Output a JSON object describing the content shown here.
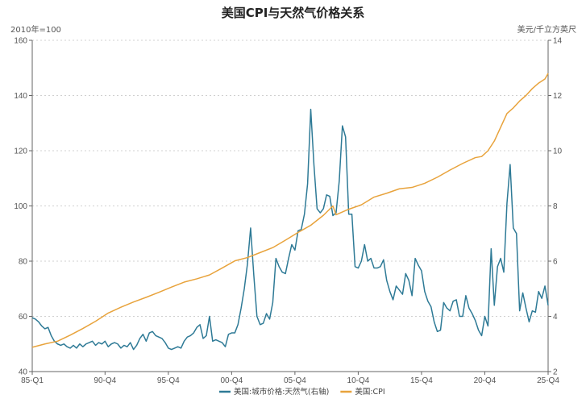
{
  "chart_data": {
    "type": "line",
    "title": "美国CPI与天然气价格关系",
    "left_axis_unit": "2010年=100",
    "right_axis_unit": "美元/千立方英尺",
    "left_axis": {
      "min": 40,
      "max": 160,
      "ticks": [
        40,
        60,
        80,
        100,
        120,
        140,
        160
      ]
    },
    "right_axis": {
      "min": 2,
      "max": 14,
      "ticks": [
        2,
        4,
        6,
        8,
        10,
        12,
        14
      ]
    },
    "x_axis": {
      "start_year": 1985,
      "end_year": 2025.75,
      "tick_labels": [
        "85-Q1",
        "90-Q4",
        "95-Q4",
        "00-Q4",
        "05-Q4",
        "10-Q4",
        "15-Q4",
        "20-Q4",
        "25-Q4"
      ],
      "tick_years": [
        1985,
        1990.75,
        1995.75,
        2000.75,
        2005.75,
        2010.75,
        2015.75,
        2020.75,
        2025.75
      ]
    },
    "grid": "horizontal-dashed",
    "legend_position": "bottom-center",
    "series": [
      {
        "name": "美国:城市价格:天然气(右轴)",
        "axis": "right",
        "color": "#2e7a96",
        "points": [
          [
            1985.0,
            3.95
          ],
          [
            1985.25,
            3.9
          ],
          [
            1985.5,
            3.8
          ],
          [
            1985.75,
            3.65
          ],
          [
            1986.0,
            3.55
          ],
          [
            1986.25,
            3.6
          ],
          [
            1986.5,
            3.3
          ],
          [
            1986.75,
            3.1
          ],
          [
            1987.0,
            3.0
          ],
          [
            1987.25,
            2.95
          ],
          [
            1987.5,
            3.0
          ],
          [
            1987.75,
            2.9
          ],
          [
            1988.0,
            2.85
          ],
          [
            1988.25,
            2.95
          ],
          [
            1988.5,
            2.85
          ],
          [
            1988.75,
            3.0
          ],
          [
            1989.0,
            2.9
          ],
          [
            1989.25,
            3.0
          ],
          [
            1989.5,
            3.05
          ],
          [
            1989.75,
            3.1
          ],
          [
            1990.0,
            2.95
          ],
          [
            1990.25,
            3.05
          ],
          [
            1990.5,
            3.0
          ],
          [
            1990.75,
            3.1
          ],
          [
            1991.0,
            2.9
          ],
          [
            1991.25,
            3.0
          ],
          [
            1991.5,
            3.05
          ],
          [
            1991.75,
            3.0
          ],
          [
            1992.0,
            2.85
          ],
          [
            1992.25,
            2.95
          ],
          [
            1992.5,
            2.9
          ],
          [
            1992.75,
            3.05
          ],
          [
            1993.0,
            2.8
          ],
          [
            1993.25,
            2.95
          ],
          [
            1993.5,
            3.2
          ],
          [
            1993.75,
            3.35
          ],
          [
            1994.0,
            3.1
          ],
          [
            1994.25,
            3.4
          ],
          [
            1994.5,
            3.45
          ],
          [
            1994.75,
            3.3
          ],
          [
            1995.0,
            3.25
          ],
          [
            1995.25,
            3.2
          ],
          [
            1995.5,
            3.05
          ],
          [
            1995.75,
            2.85
          ],
          [
            1996.0,
            2.8
          ],
          [
            1996.25,
            2.85
          ],
          [
            1996.5,
            2.9
          ],
          [
            1996.75,
            2.85
          ],
          [
            1997.0,
            3.1
          ],
          [
            1997.25,
            3.25
          ],
          [
            1997.5,
            3.3
          ],
          [
            1997.75,
            3.4
          ],
          [
            1998.0,
            3.6
          ],
          [
            1998.25,
            3.7
          ],
          [
            1998.5,
            3.2
          ],
          [
            1998.75,
            3.3
          ],
          [
            1999.0,
            4.0
          ],
          [
            1999.25,
            3.1
          ],
          [
            1999.5,
            3.15
          ],
          [
            1999.75,
            3.1
          ],
          [
            2000.0,
            3.05
          ],
          [
            2000.25,
            2.9
          ],
          [
            2000.5,
            3.35
          ],
          [
            2000.75,
            3.4
          ],
          [
            2001.0,
            3.4
          ],
          [
            2001.25,
            3.7
          ],
          [
            2001.5,
            4.3
          ],
          [
            2001.75,
            5.0
          ],
          [
            2002.0,
            5.9
          ],
          [
            2002.25,
            7.2
          ],
          [
            2002.5,
            5.5
          ],
          [
            2002.75,
            4.0
          ],
          [
            2003.0,
            3.7
          ],
          [
            2003.25,
            3.75
          ],
          [
            2003.5,
            4.1
          ],
          [
            2003.75,
            3.9
          ],
          [
            2004.0,
            4.5
          ],
          [
            2004.25,
            6.1
          ],
          [
            2004.5,
            5.8
          ],
          [
            2004.75,
            5.6
          ],
          [
            2005.0,
            5.55
          ],
          [
            2005.25,
            6.1
          ],
          [
            2005.5,
            6.6
          ],
          [
            2005.75,
            6.4
          ],
          [
            2006.0,
            7.1
          ],
          [
            2006.25,
            7.15
          ],
          [
            2006.5,
            7.7
          ],
          [
            2006.75,
            8.8
          ],
          [
            2007.0,
            11.5
          ],
          [
            2007.25,
            9.5
          ],
          [
            2007.5,
            7.9
          ],
          [
            2007.75,
            7.75
          ],
          [
            2008.0,
            7.9
          ],
          [
            2008.25,
            8.4
          ],
          [
            2008.5,
            8.35
          ],
          [
            2008.75,
            7.65
          ],
          [
            2009.0,
            7.75
          ],
          [
            2009.25,
            8.9
          ],
          [
            2009.5,
            10.9
          ],
          [
            2009.75,
            10.5
          ],
          [
            2010.0,
            7.7
          ],
          [
            2010.25,
            7.7
          ],
          [
            2010.5,
            5.8
          ],
          [
            2010.75,
            5.75
          ],
          [
            2011.0,
            6.0
          ],
          [
            2011.25,
            6.6
          ],
          [
            2011.5,
            6.0
          ],
          [
            2011.75,
            6.1
          ],
          [
            2012.0,
            5.75
          ],
          [
            2012.25,
            5.75
          ],
          [
            2012.5,
            5.8
          ],
          [
            2012.75,
            6.05
          ],
          [
            2013.0,
            5.3
          ],
          [
            2013.25,
            4.9
          ],
          [
            2013.5,
            4.6
          ],
          [
            2013.75,
            5.1
          ],
          [
            2014.0,
            4.95
          ],
          [
            2014.25,
            4.8
          ],
          [
            2014.5,
            5.55
          ],
          [
            2014.75,
            5.3
          ],
          [
            2015.0,
            4.75
          ],
          [
            2015.25,
            6.1
          ],
          [
            2015.5,
            5.85
          ],
          [
            2015.75,
            5.65
          ],
          [
            2016.0,
            4.9
          ],
          [
            2016.25,
            4.55
          ],
          [
            2016.5,
            4.35
          ],
          [
            2016.75,
            3.8
          ],
          [
            2017.0,
            3.45
          ],
          [
            2017.25,
            3.5
          ],
          [
            2017.5,
            4.5
          ],
          [
            2017.75,
            4.3
          ],
          [
            2018.0,
            4.2
          ],
          [
            2018.25,
            4.55
          ],
          [
            2018.5,
            4.6
          ],
          [
            2018.75,
            4.0
          ],
          [
            2019.0,
            4.0
          ],
          [
            2019.25,
            4.75
          ],
          [
            2019.5,
            4.3
          ],
          [
            2019.75,
            4.1
          ],
          [
            2020.0,
            3.85
          ],
          [
            2020.25,
            3.5
          ],
          [
            2020.5,
            3.3
          ],
          [
            2020.75,
            4.0
          ],
          [
            2021.0,
            3.65
          ],
          [
            2021.25,
            6.45
          ],
          [
            2021.5,
            4.4
          ],
          [
            2021.75,
            5.8
          ],
          [
            2022.0,
            6.1
          ],
          [
            2022.25,
            5.6
          ],
          [
            2022.5,
            8.1
          ],
          [
            2022.75,
            9.5
          ],
          [
            2023.0,
            7.2
          ],
          [
            2023.25,
            7.0
          ],
          [
            2023.5,
            4.2
          ],
          [
            2023.75,
            4.85
          ],
          [
            2024.0,
            4.3
          ],
          [
            2024.25,
            3.8
          ],
          [
            2024.5,
            4.2
          ],
          [
            2024.75,
            4.15
          ],
          [
            2025.0,
            4.9
          ],
          [
            2025.25,
            4.65
          ],
          [
            2025.5,
            5.1
          ],
          [
            2025.75,
            4.4
          ]
        ]
      },
      {
        "name": "美国:CPI",
        "axis": "left",
        "color": "#e8a33c",
        "points": [
          [
            1985.0,
            48.8
          ],
          [
            1986.0,
            50.0
          ],
          [
            1987.0,
            51.0
          ],
          [
            1988.0,
            53.2
          ],
          [
            1989.0,
            55.6
          ],
          [
            1990.0,
            58.2
          ],
          [
            1991.0,
            61.2
          ],
          [
            1992.0,
            63.3
          ],
          [
            1993.0,
            65.2
          ],
          [
            1994.0,
            66.9
          ],
          [
            1995.0,
            68.7
          ],
          [
            1996.0,
            70.6
          ],
          [
            1997.0,
            72.4
          ],
          [
            1998.0,
            73.6
          ],
          [
            1999.0,
            75.0
          ],
          [
            2000.0,
            77.5
          ],
          [
            2001.0,
            80.1
          ],
          [
            2002.0,
            81.3
          ],
          [
            2003.0,
            83.1
          ],
          [
            2004.0,
            84.9
          ],
          [
            2005.0,
            87.6
          ],
          [
            2006.0,
            90.4
          ],
          [
            2007.0,
            93.0
          ],
          [
            2008.0,
            96.6
          ],
          [
            2008.75,
            100.0
          ],
          [
            2009.0,
            96.8
          ],
          [
            2010.0,
            98.8
          ],
          [
            2011.0,
            100.4
          ],
          [
            2012.0,
            103.2
          ],
          [
            2013.0,
            104.6
          ],
          [
            2014.0,
            106.2
          ],
          [
            2015.0,
            106.7
          ],
          [
            2016.0,
            108.2
          ],
          [
            2017.0,
            110.4
          ],
          [
            2018.0,
            113.0
          ],
          [
            2019.0,
            115.4
          ],
          [
            2020.0,
            117.5
          ],
          [
            2020.5,
            117.9
          ],
          [
            2021.0,
            120.0
          ],
          [
            2021.5,
            123.5
          ],
          [
            2022.0,
            128.5
          ],
          [
            2022.5,
            133.5
          ],
          [
            2023.0,
            135.5
          ],
          [
            2023.5,
            138.0
          ],
          [
            2024.0,
            140.0
          ],
          [
            2024.5,
            142.5
          ],
          [
            2025.0,
            144.5
          ],
          [
            2025.5,
            146.0
          ],
          [
            2025.75,
            148.0
          ]
        ]
      }
    ]
  }
}
